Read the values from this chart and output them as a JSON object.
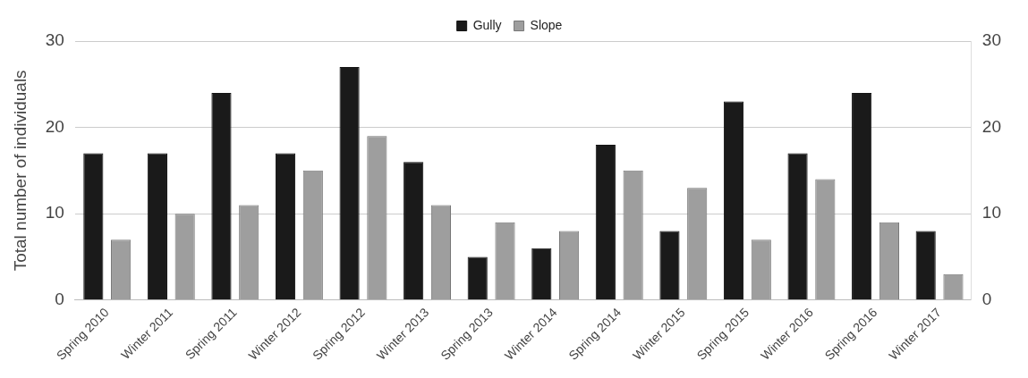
{
  "chart_data": {
    "type": "bar",
    "ylabel": "Total number of individuals",
    "categories": [
      "Spring 2010",
      "Winter 2011",
      "Spring 2011",
      "Winter 2012",
      "Spring 2012",
      "Winter 2013",
      "Spring 2013",
      "Winter 2014",
      "Spring 2014",
      "Winter 2015",
      "Spring 2015",
      "Winter 2016",
      "Spring 2016",
      "Winter 2017"
    ],
    "series": [
      {
        "name": "Gully",
        "color": "#1a1a1a",
        "values": [
          17,
          17,
          24,
          17,
          27,
          16,
          5,
          6,
          18,
          8,
          23,
          17,
          24,
          8
        ]
      },
      {
        "name": "Slope",
        "color": "#9e9e9e",
        "values": [
          7,
          10,
          11,
          15,
          19,
          11,
          9,
          8,
          15,
          13,
          7,
          14,
          9,
          3
        ]
      }
    ],
    "ylim": [
      0,
      30
    ],
    "yticks": [
      0,
      10,
      20,
      30
    ],
    "y2lim": [
      0,
      30
    ],
    "y2ticks": [
      0,
      10,
      20,
      30
    ],
    "grid": "y",
    "legend": "top"
  }
}
